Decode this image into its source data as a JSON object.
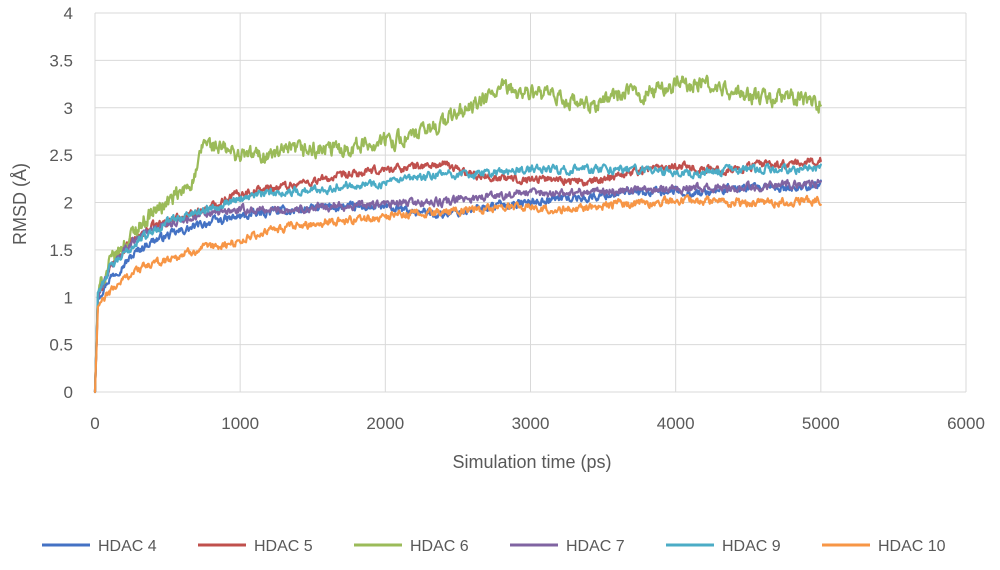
{
  "chart_data": {
    "type": "line",
    "xlabel": "Simulation time (ps)",
    "ylabel": "RMSD (Å)",
    "xlim": [
      0,
      6000
    ],
    "ylim": [
      0,
      4
    ],
    "x_ticks": [
      "0",
      "1000",
      "2000",
      "3000",
      "4000",
      "5000",
      "6000"
    ],
    "y_ticks": [
      "0",
      "0.5",
      "1",
      "1.5",
      "2",
      "2.5",
      "3",
      "3.5",
      "4"
    ],
    "grid": true,
    "legend_position": "bottom",
    "series": [
      {
        "name": "HDAC 4",
        "color": "#4472C4",
        "x": [
          0,
          20,
          100,
          200,
          300,
          400,
          500,
          600,
          700,
          800,
          900,
          1000,
          1200,
          1400,
          1600,
          1800,
          2000,
          2200,
          2400,
          2600,
          2800,
          3000,
          3200,
          3400,
          3600,
          3800,
          4000,
          4200,
          4400,
          4600,
          4800,
          5000
        ],
        "y": [
          0,
          1.0,
          1.2,
          1.35,
          1.5,
          1.6,
          1.65,
          1.7,
          1.75,
          1.8,
          1.82,
          1.85,
          1.9,
          1.92,
          1.95,
          1.95,
          1.95,
          1.9,
          1.88,
          1.92,
          1.98,
          2.0,
          2.05,
          2.05,
          2.1,
          2.1,
          2.12,
          2.1,
          2.15,
          2.15,
          2.15,
          2.2
        ]
      },
      {
        "name": "HDAC 5",
        "color": "#C0504D",
        "x": [
          0,
          20,
          100,
          200,
          300,
          400,
          500,
          600,
          700,
          800,
          900,
          1000,
          1200,
          1400,
          1600,
          1800,
          2000,
          2200,
          2400,
          2600,
          2800,
          3000,
          3200,
          3400,
          3600,
          3800,
          4000,
          4200,
          4400,
          4600,
          4800,
          5000
        ],
        "y": [
          0,
          1.0,
          1.3,
          1.5,
          1.65,
          1.75,
          1.8,
          1.85,
          1.9,
          1.95,
          2.05,
          2.1,
          2.15,
          2.2,
          2.25,
          2.3,
          2.35,
          2.38,
          2.4,
          2.3,
          2.25,
          2.25,
          2.25,
          2.2,
          2.3,
          2.35,
          2.4,
          2.35,
          2.35,
          2.4,
          2.4,
          2.45
        ]
      },
      {
        "name": "HDAC 6",
        "color": "#9BBB59",
        "x": [
          0,
          20,
          100,
          200,
          300,
          400,
          500,
          600,
          700,
          750,
          800,
          900,
          1000,
          1200,
          1400,
          1600,
          1800,
          2000,
          2200,
          2400,
          2500,
          2600,
          2800,
          3000,
          3200,
          3400,
          3600,
          3800,
          4000,
          4200,
          4400,
          4600,
          4800,
          5000
        ],
        "y": [
          0,
          1.05,
          1.35,
          1.55,
          1.75,
          1.9,
          2.0,
          2.1,
          2.3,
          2.65,
          2.6,
          2.55,
          2.5,
          2.5,
          2.55,
          2.55,
          2.6,
          2.65,
          2.7,
          2.85,
          2.95,
          3.0,
          3.2,
          3.15,
          3.1,
          3.0,
          3.15,
          3.15,
          3.25,
          3.25,
          3.15,
          3.1,
          3.1,
          3.05
        ]
      },
      {
        "name": "HDAC 7",
        "color": "#8064A2",
        "x": [
          0,
          20,
          100,
          200,
          300,
          400,
          500,
          600,
          700,
          800,
          900,
          1000,
          1200,
          1400,
          1600,
          1800,
          2000,
          2200,
          2400,
          2600,
          2800,
          3000,
          3200,
          3400,
          3600,
          3800,
          4000,
          4200,
          4400,
          4600,
          4800,
          5000
        ],
        "y": [
          0,
          1.0,
          1.3,
          1.5,
          1.65,
          1.72,
          1.78,
          1.82,
          1.85,
          1.88,
          1.9,
          1.92,
          1.92,
          1.93,
          1.95,
          1.97,
          1.98,
          2.0,
          2.0,
          2.05,
          2.08,
          2.1,
          2.1,
          2.12,
          2.12,
          2.15,
          2.15,
          2.15,
          2.15,
          2.18,
          2.2,
          2.2
        ]
      },
      {
        "name": "HDAC 9",
        "color": "#4BACC6",
        "x": [
          0,
          20,
          100,
          200,
          300,
          400,
          500,
          600,
          700,
          800,
          900,
          1000,
          1200,
          1400,
          1600,
          1800,
          2000,
          2200,
          2400,
          2600,
          2800,
          3000,
          3200,
          3400,
          3600,
          3800,
          4000,
          4200,
          4400,
          4600,
          4800,
          5000
        ],
        "y": [
          0,
          1.05,
          1.3,
          1.45,
          1.6,
          1.7,
          1.8,
          1.85,
          1.9,
          1.95,
          2.0,
          2.05,
          2.1,
          2.12,
          2.15,
          2.2,
          2.2,
          2.25,
          2.3,
          2.3,
          2.32,
          2.35,
          2.35,
          2.35,
          2.35,
          2.35,
          2.3,
          2.32,
          2.35,
          2.35,
          2.35,
          2.35
        ]
      },
      {
        "name": "HDAC 10",
        "color": "#F79646",
        "x": [
          0,
          20,
          100,
          200,
          300,
          400,
          500,
          600,
          700,
          800,
          900,
          1000,
          1200,
          1400,
          1600,
          1800,
          2000,
          2200,
          2400,
          2600,
          2800,
          3000,
          3200,
          3400,
          3600,
          3800,
          4000,
          4200,
          4400,
          4600,
          4800,
          5000
        ],
        "y": [
          0,
          0.9,
          1.05,
          1.2,
          1.3,
          1.35,
          1.4,
          1.45,
          1.5,
          1.52,
          1.55,
          1.6,
          1.7,
          1.75,
          1.8,
          1.82,
          1.85,
          1.88,
          1.9,
          1.92,
          1.95,
          1.95,
          1.92,
          1.95,
          1.98,
          2.0,
          2.02,
          2.02,
          2.0,
          2.0,
          2.0,
          2.02
        ]
      }
    ]
  }
}
